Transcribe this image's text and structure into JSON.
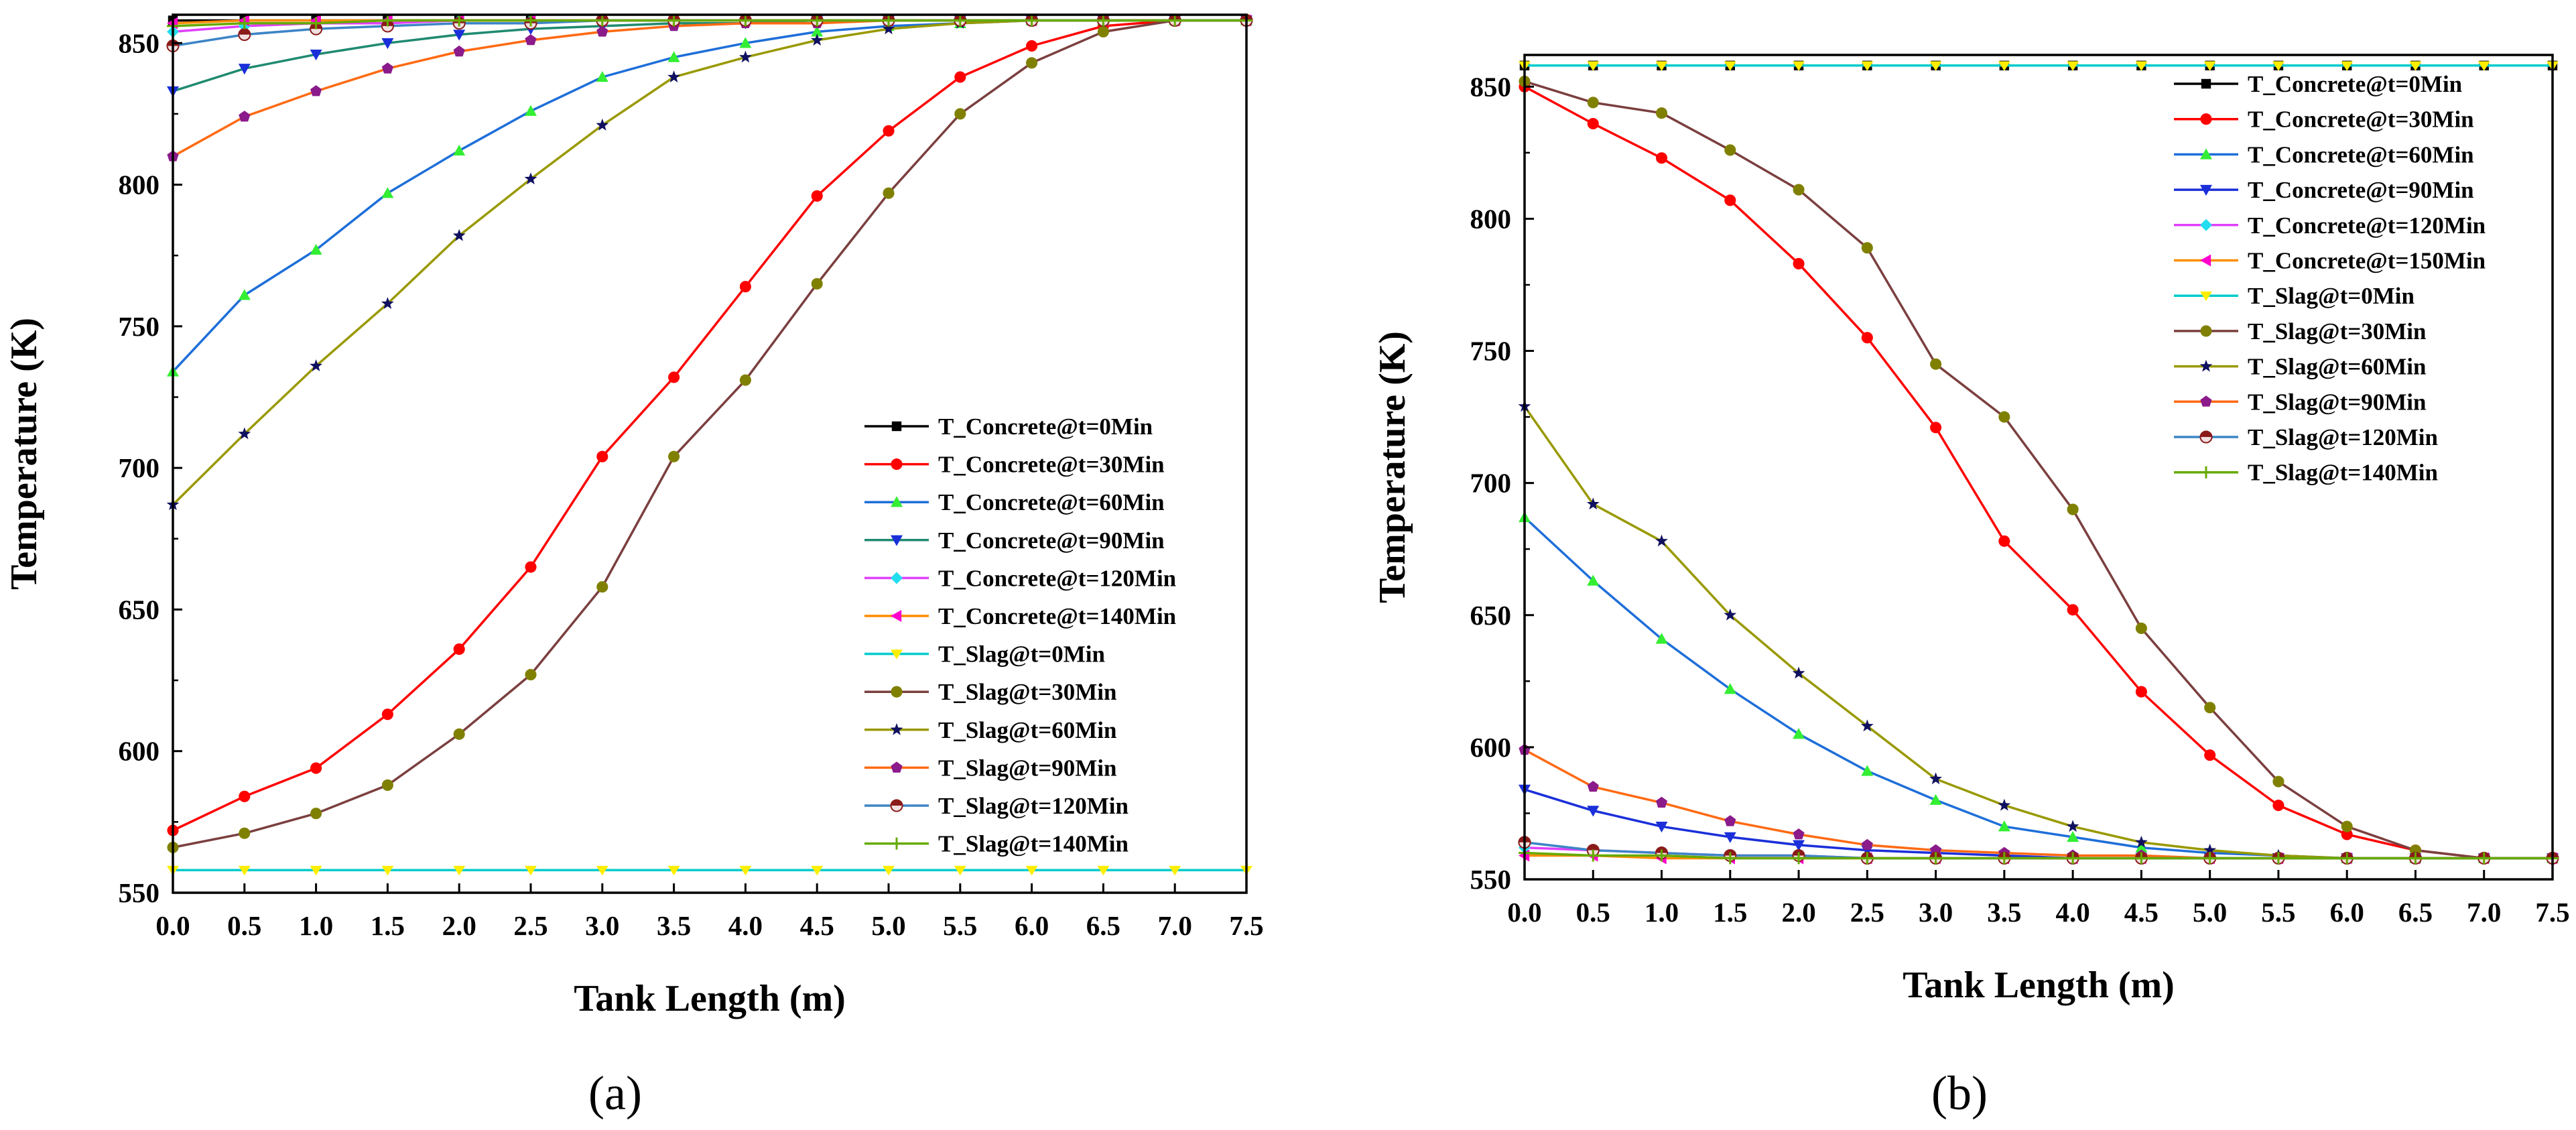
{
  "figure": {
    "panels": [
      {
        "label": "(a)"
      },
      {
        "label": "(b)"
      }
    ]
  },
  "chart_data": [
    {
      "type": "line",
      "panel": "(a)",
      "xlabel": "Tank Length (m)",
      "ylabel": "Temperature (K)",
      "xlim": [
        0,
        7.5
      ],
      "ylim": [
        550,
        860
      ],
      "xticks": [
        "0.0",
        "0.5",
        "1.0",
        "1.5",
        "2.0",
        "2.5",
        "3.0",
        "3.5",
        "4.0",
        "4.5",
        "5.0",
        "5.5",
        "6.0",
        "6.5",
        "7.0",
        "7.5"
      ],
      "yticks": [
        "550",
        "600",
        "650",
        "700",
        "750",
        "800",
        "850"
      ],
      "legend_position": "right-middle",
      "x": [
        0,
        0.5,
        1,
        1.5,
        2,
        2.5,
        3,
        3.5,
        4,
        4.5,
        5,
        5.5,
        6,
        6.5,
        7,
        7.5
      ],
      "series": [
        {
          "name": "T_Concrete@t=0Min",
          "color": "#000000",
          "marker": "square",
          "values": [
            858,
            858,
            858,
            858,
            858,
            858,
            858,
            858,
            858,
            858,
            858,
            858,
            858,
            858,
            858,
            858
          ]
        },
        {
          "name": "T_Concrete@t=30Min",
          "color": "#ff0000",
          "marker": "circle",
          "values": [
            572,
            584,
            594,
            613,
            636,
            665,
            704,
            732,
            764,
            796,
            819,
            838,
            849,
            856,
            858,
            858
          ]
        },
        {
          "name": "T_Concrete@t=60Min",
          "color": "#1e6fd9",
          "marker": "triangle-up",
          "values": [
            734,
            761,
            777,
            797,
            812,
            826,
            838,
            845,
            850,
            854,
            856,
            857,
            858,
            858,
            858,
            858
          ]
        },
        {
          "name": "T_Concrete@t=90Min",
          "color": "#1f8a70",
          "marker": "triangle-down",
          "values": [
            833,
            841,
            846,
            850,
            853,
            855,
            856,
            857,
            857,
            858,
            858,
            858,
            858,
            858,
            858,
            858
          ]
        },
        {
          "name": "T_Concrete@t=120Min",
          "color": "#e040fb",
          "marker": "diamond",
          "values": [
            854,
            856,
            857,
            857,
            858,
            858,
            858,
            858,
            858,
            858,
            858,
            858,
            858,
            858,
            858,
            858
          ]
        },
        {
          "name": "T_Concrete@t=140Min",
          "color": "#ff8c00",
          "marker": "triangle-left",
          "values": [
            857,
            858,
            858,
            858,
            858,
            858,
            858,
            858,
            858,
            858,
            858,
            858,
            858,
            858,
            858,
            858
          ]
        },
        {
          "name": "T_Slag@t=0Min",
          "color": "#00cccc",
          "marker": "triangle-down-yellow",
          "values": [
            558,
            558,
            558,
            558,
            558,
            558,
            558,
            558,
            558,
            558,
            558,
            558,
            558,
            558,
            558,
            558
          ]
        },
        {
          "name": "T_Slag@t=30Min",
          "color": "#7b3f3f",
          "marker": "circle-olive",
          "values": [
            566,
            571,
            578,
            588,
            606,
            627,
            658,
            704,
            731,
            765,
            797,
            825,
            843,
            854,
            858,
            858
          ]
        },
        {
          "name": "T_Slag@t=60Min",
          "color": "#999900",
          "marker": "star",
          "values": [
            687,
            712,
            736,
            758,
            782,
            802,
            821,
            838,
            845,
            851,
            855,
            857,
            858,
            858,
            858,
            858
          ]
        },
        {
          "name": "T_Slag@t=90Min",
          "color": "#ff6a13",
          "marker": "pentagon",
          "values": [
            810,
            824,
            833,
            841,
            847,
            851,
            854,
            856,
            857,
            857,
            858,
            858,
            858,
            858,
            858,
            858
          ]
        },
        {
          "name": "T_Slag@t=120Min",
          "color": "#3d85c6",
          "marker": "half-circle",
          "values": [
            849,
            853,
            855,
            856,
            857,
            857,
            858,
            858,
            858,
            858,
            858,
            858,
            858,
            858,
            858,
            858
          ]
        },
        {
          "name": "T_Slag@t=140Min",
          "color": "#66aa00",
          "marker": "plus",
          "values": [
            856,
            857,
            857,
            858,
            858,
            858,
            858,
            858,
            858,
            858,
            858,
            858,
            858,
            858,
            858,
            858
          ]
        }
      ]
    },
    {
      "type": "line",
      "panel": "(b)",
      "xlabel": "Tank Length (m)",
      "ylabel": "Temperature (K)",
      "xlim": [
        0,
        7.5
      ],
      "ylim": [
        550,
        862
      ],
      "xticks": [
        "0.0",
        "0.5",
        "1.0",
        "1.5",
        "2.0",
        "2.5",
        "3.0",
        "3.5",
        "4.0",
        "4.5",
        "5.0",
        "5.5",
        "6.0",
        "6.5",
        "7.0",
        "7.5"
      ],
      "yticks": [
        "550",
        "600",
        "650",
        "700",
        "750",
        "800",
        "850"
      ],
      "legend_position": "top-right",
      "x": [
        0,
        0.5,
        1,
        1.5,
        2,
        2.5,
        3,
        3.5,
        4,
        4.5,
        5,
        5.5,
        6,
        6.5,
        7,
        7.5
      ],
      "series": [
        {
          "name": "T_Concrete@t=0Min",
          "color": "#000000",
          "marker": "square",
          "values": [
            858,
            858,
            858,
            858,
            858,
            858,
            858,
            858,
            858,
            858,
            858,
            858,
            858,
            858,
            858,
            858
          ]
        },
        {
          "name": "T_Concrete@t=30Min",
          "color": "#ff0000",
          "marker": "circle",
          "values": [
            850,
            836,
            823,
            807,
            783,
            755,
            721,
            678,
            652,
            621,
            597,
            578,
            567,
            561,
            558,
            558
          ]
        },
        {
          "name": "T_Concrete@t=60Min",
          "color": "#1e6fd9",
          "marker": "triangle-up",
          "values": [
            687,
            663,
            641,
            622,
            605,
            591,
            580,
            570,
            566,
            562,
            560,
            559,
            558,
            558,
            558,
            558
          ]
        },
        {
          "name": "T_Concrete@t=90Min",
          "color": "#1a2fd9",
          "marker": "triangle-down",
          "values": [
            584,
            576,
            570,
            566,
            563,
            561,
            560,
            559,
            558,
            558,
            558,
            558,
            558,
            558,
            558,
            558
          ]
        },
        {
          "name": "T_Concrete@t=120Min",
          "color": "#e040fb",
          "marker": "diamond",
          "values": [
            562,
            561,
            560,
            559,
            559,
            558,
            558,
            558,
            558,
            558,
            558,
            558,
            558,
            558,
            558,
            558
          ]
        },
        {
          "name": "T_Concrete@t=150Min",
          "color": "#ff8c00",
          "marker": "triangle-left",
          "values": [
            559,
            559,
            558,
            558,
            558,
            558,
            558,
            558,
            558,
            558,
            558,
            558,
            558,
            558,
            558,
            558
          ]
        },
        {
          "name": "T_Slag@t=0Min",
          "color": "#00cccc",
          "marker": "triangle-down-yellow",
          "values": [
            858,
            858,
            858,
            858,
            858,
            858,
            858,
            858,
            858,
            858,
            858,
            858,
            858,
            858,
            858,
            858
          ]
        },
        {
          "name": "T_Slag@t=30Min",
          "color": "#7b3f3f",
          "marker": "circle-olive",
          "values": [
            852,
            844,
            840,
            826,
            811,
            789,
            745,
            725,
            690,
            645,
            615,
            587,
            570,
            561,
            558,
            558
          ]
        },
        {
          "name": "T_Slag@t=60Min",
          "color": "#999900",
          "marker": "star",
          "values": [
            729,
            692,
            678,
            650,
            628,
            608,
            588,
            578,
            570,
            564,
            561,
            559,
            558,
            558,
            558,
            558
          ]
        },
        {
          "name": "T_Slag@t=90Min",
          "color": "#ff6a13",
          "marker": "pentagon",
          "values": [
            599,
            585,
            579,
            572,
            567,
            563,
            561,
            560,
            559,
            559,
            558,
            558,
            558,
            558,
            558,
            558
          ]
        },
        {
          "name": "T_Slag@t=120Min",
          "color": "#3d85c6",
          "marker": "half-circle",
          "values": [
            564,
            561,
            560,
            559,
            559,
            558,
            558,
            558,
            558,
            558,
            558,
            558,
            558,
            558,
            558,
            558
          ]
        },
        {
          "name": "T_Slag@t=140Min",
          "color": "#66aa00",
          "marker": "plus",
          "values": [
            560,
            559,
            559,
            558,
            558,
            558,
            558,
            558,
            558,
            558,
            558,
            558,
            558,
            558,
            558,
            558
          ]
        }
      ]
    }
  ]
}
